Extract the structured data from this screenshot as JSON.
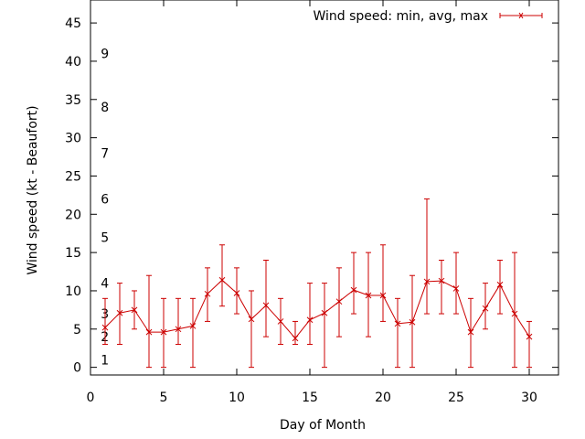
{
  "chart_data": {
    "type": "line",
    "title": "",
    "xlabel": "Day of Month",
    "ylabel": "Wind speed (kt - Beaufort)",
    "xlim": [
      0,
      32
    ],
    "ylim": [
      -1,
      48
    ],
    "xticks": [
      0,
      5,
      10,
      15,
      20,
      25,
      30
    ],
    "yticks": [
      0,
      5,
      10,
      15,
      20,
      25,
      30,
      35,
      40,
      45
    ],
    "grid": false,
    "legend_position": "top-right",
    "series": [
      {
        "name": "Wind speed: min, avg, max",
        "color": "#cc0000",
        "error_bars": true,
        "x": [
          1,
          2,
          3,
          4,
          5,
          6,
          7,
          8,
          9,
          10,
          11,
          12,
          13,
          14,
          15,
          16,
          17,
          18,
          19,
          20,
          21,
          22,
          23,
          24,
          25,
          26,
          27,
          28,
          29,
          30
        ],
        "avg": [
          5.2,
          7.1,
          7.5,
          4.6,
          4.6,
          5.0,
          5.4,
          9.6,
          11.4,
          9.7,
          6.3,
          8.1,
          6.0,
          3.8,
          6.2,
          7.1,
          8.6,
          10.1,
          9.4,
          9.4,
          5.7,
          5.9,
          11.2,
          11.3,
          10.3,
          4.6,
          7.7,
          10.8,
          7.0,
          4.0
        ],
        "min": [
          3,
          3,
          5,
          0,
          0,
          3,
          0,
          6,
          8,
          7,
          0,
          4,
          3,
          3,
          3,
          0,
          4,
          7,
          4,
          6,
          0,
          0,
          7,
          7,
          7,
          0,
          5,
          7,
          0,
          0
        ],
        "max": [
          9,
          11,
          10,
          12,
          9,
          9,
          9,
          13,
          16,
          13,
          10,
          14,
          9,
          6,
          11,
          11,
          13,
          15,
          15,
          16,
          9,
          12,
          22,
          14,
          15,
          9,
          11,
          14,
          15,
          6
        ]
      }
    ],
    "annotations": [
      {
        "text": "1",
        "x": 0.7,
        "y": 1
      },
      {
        "text": "2",
        "x": 0.7,
        "y": 4
      },
      {
        "text": "3",
        "x": 0.7,
        "y": 7
      },
      {
        "text": "4",
        "x": 0.7,
        "y": 11
      },
      {
        "text": "5",
        "x": 0.7,
        "y": 17
      },
      {
        "text": "6",
        "x": 0.7,
        "y": 22
      },
      {
        "text": "7",
        "x": 0.7,
        "y": 28
      },
      {
        "text": "8",
        "x": 0.7,
        "y": 34
      },
      {
        "text": "9",
        "x": 0.7,
        "y": 41
      }
    ]
  }
}
